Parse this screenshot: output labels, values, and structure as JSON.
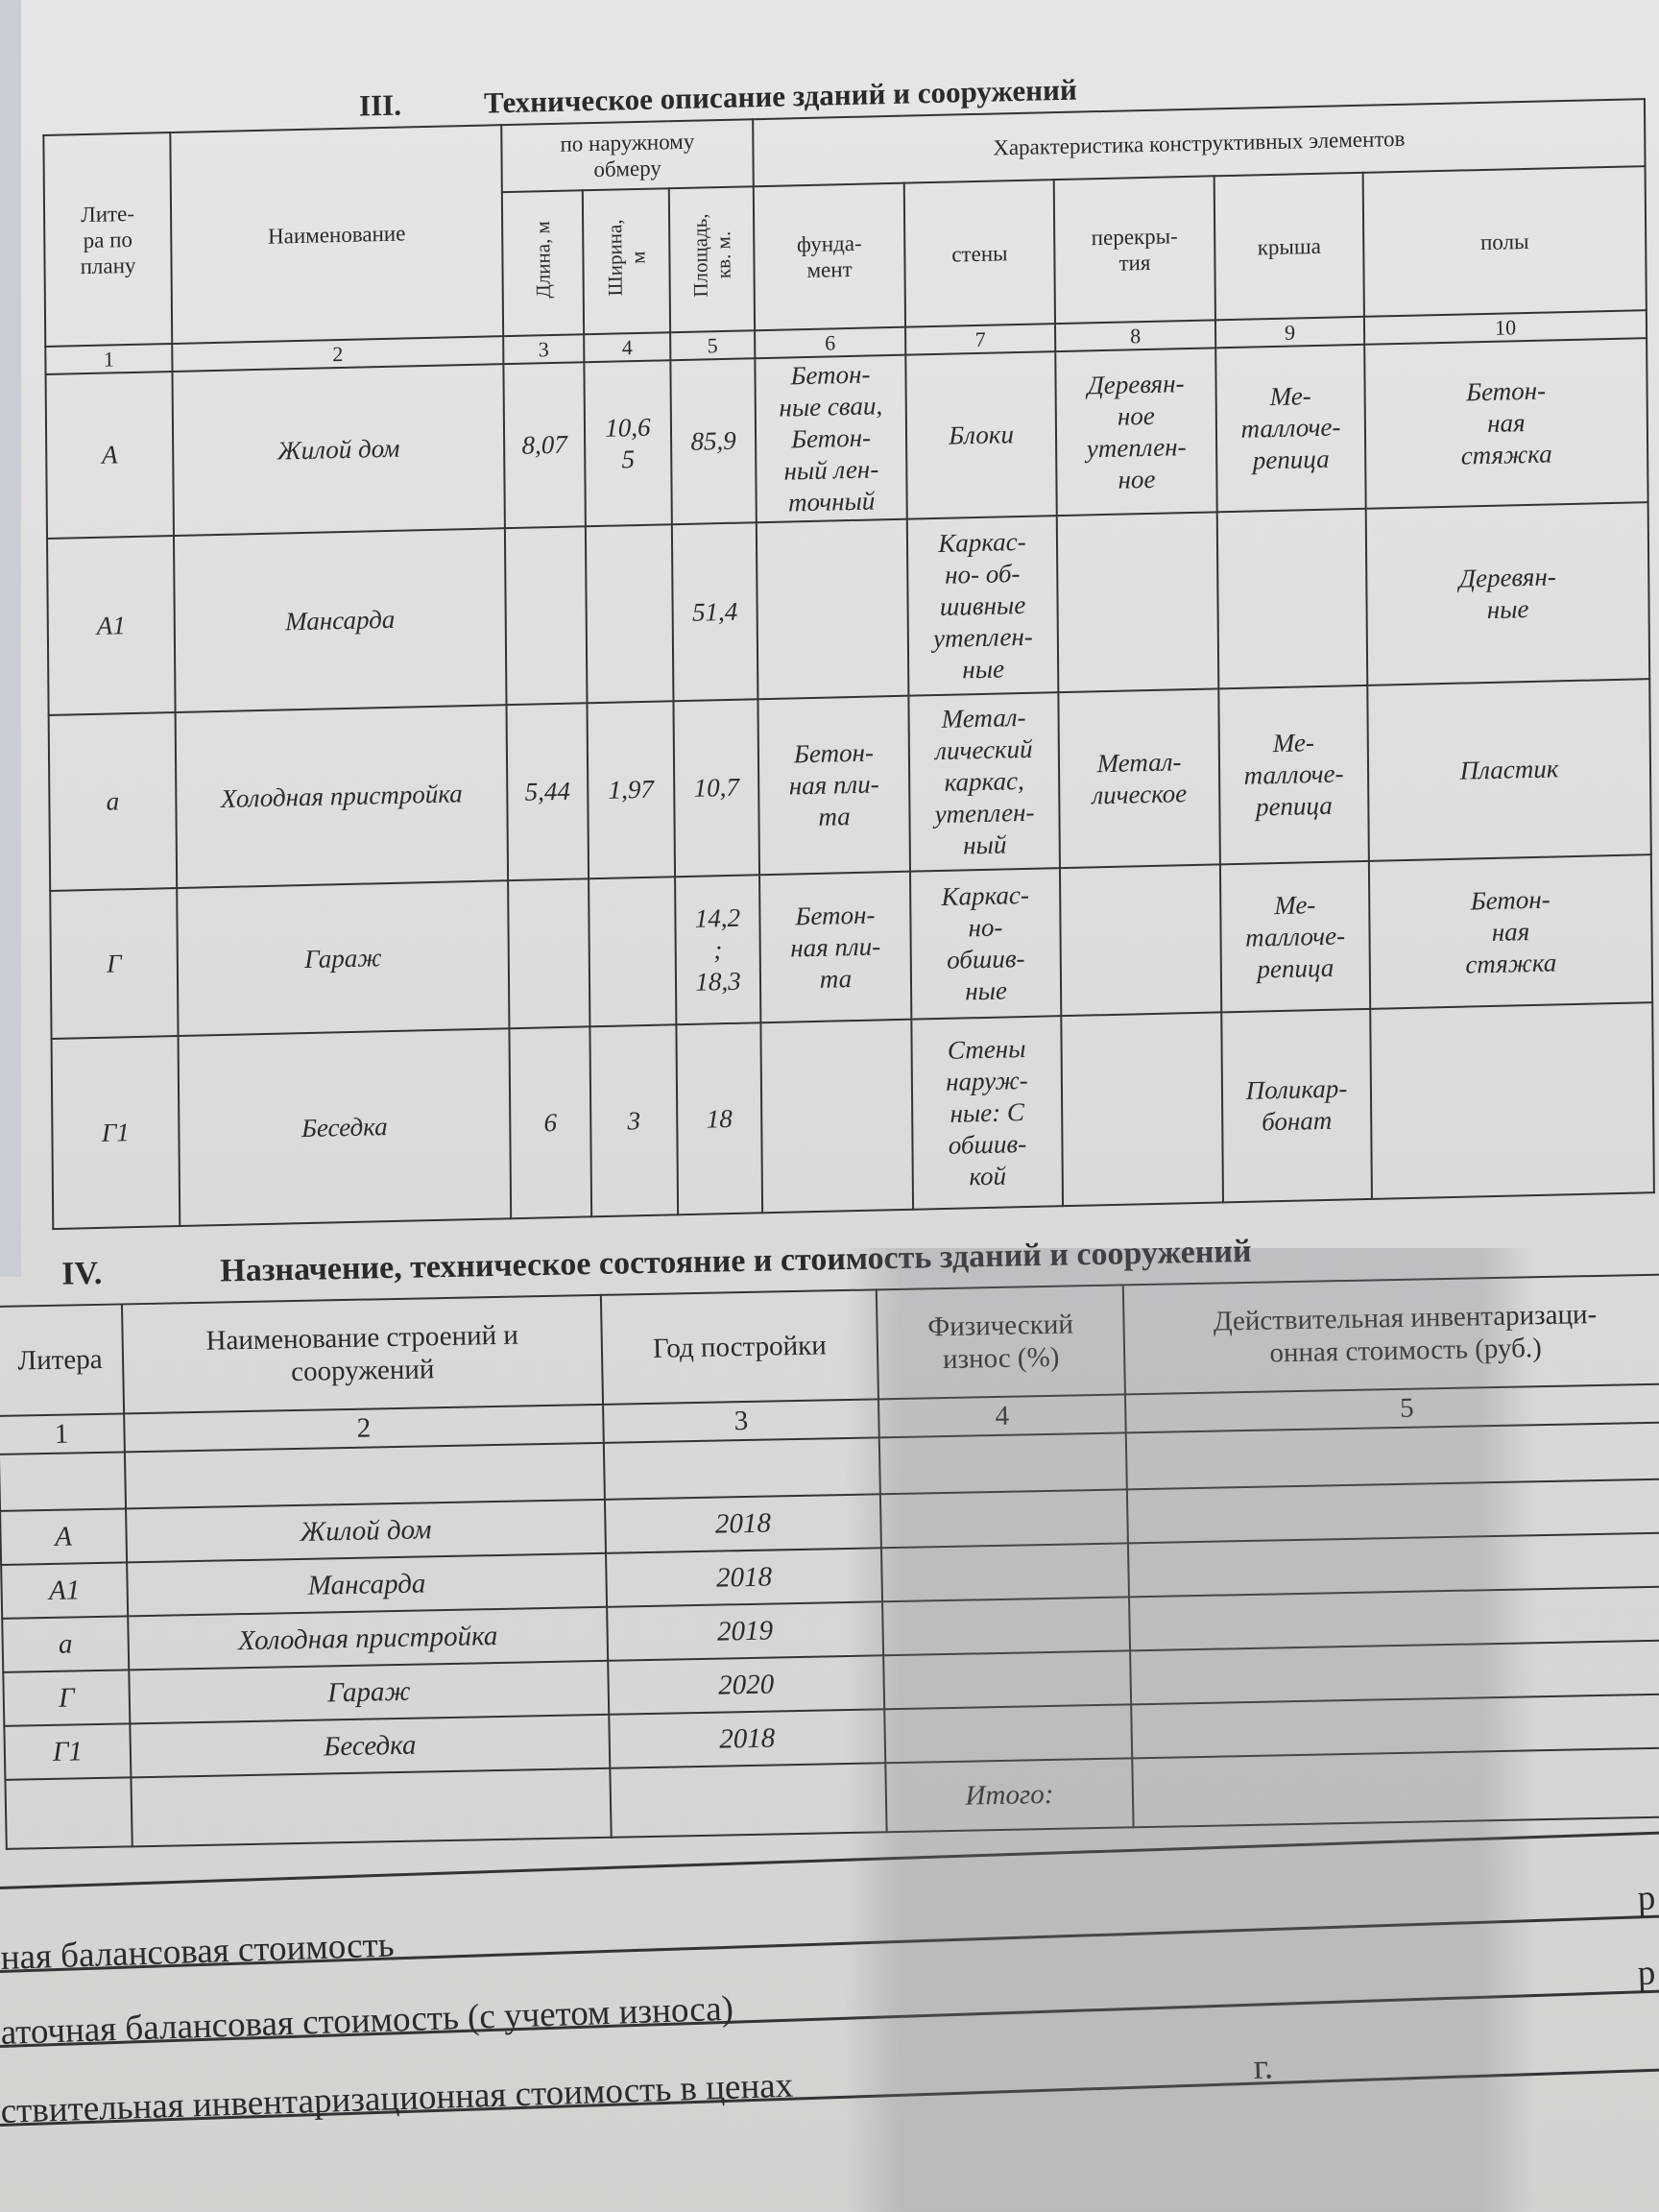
{
  "section3": {
    "number": "III.",
    "title": "Техническое описание зданий   и сооружений",
    "headers": {
      "litera": "Лите-\nра по\nплану",
      "name": "Наименование",
      "outer_group": "по наружному\nобмеру",
      "length": "Длина, м",
      "width": "Ширина,\nм",
      "area": "Площадь,\nкв. м.",
      "elements_group": "Характеристика конструктивных элементов",
      "foundation": "фунда-\nмент",
      "walls": "стены",
      "floors_slab": "перекры-\nтия",
      "roof": "крыша",
      "floor": "полы"
    },
    "column_numbers": [
      "1",
      "2",
      "3",
      "4",
      "5",
      "6",
      "7",
      "8",
      "9",
      "10"
    ],
    "rows": [
      [
        "А",
        "Жилой дом",
        "8,07",
        "10,6\n5",
        "85,9",
        "Бетон-\nные сваи,\nБетон-\nный лен-\nточный",
        "Блоки",
        "Деревян-\nное\nутеплен-\nное",
        "Ме-\nталлоче-\nрепица",
        "Бетон-\nная\nстяжка"
      ],
      [
        "А1",
        "Мансарда",
        "",
        "",
        "51,4",
        "",
        "Каркас-\nно- об-\nшивные\nутеплен-\nные",
        "",
        "",
        "Деревян-\nные"
      ],
      [
        "а",
        "Холодная пристройка",
        "5,44",
        "1,97",
        "10,7",
        "Бетон-\nная пли-\nта",
        "Метал-\nлический\nкаркас,\nутеплен-\nный",
        "Метал-\nлическое",
        "Ме-\nталлоче-\nрепица",
        "Пластик"
      ],
      [
        "Г",
        "Гараж",
        "",
        "",
        "14,2\n;\n18,3",
        "Бетон-\nная пли-\nта",
        "Каркас-\nно-\nобшив-\nные",
        "",
        "Ме-\nталлоче-\nрепица",
        "Бетон-\nная\nстяжка"
      ],
      [
        "Г1",
        "Беседка",
        "6",
        "3",
        "18",
        "",
        "Стены\nнаруж-\nные: С\nобшив-\nкой",
        "",
        "Поликар-\nбонат",
        ""
      ]
    ]
  },
  "section4": {
    "number": "IV.",
    "title": "Назначение, техническое состояние и стоимость зданий и сооружений",
    "headers": [
      "Литера",
      "Наименование строений и\nсооружений",
      "Год постройки",
      "Физический\nизнос (%)",
      "Действительная инвентаризаци-\nонная стоимость (руб.)"
    ],
    "column_numbers": [
      "1",
      "2",
      "3",
      "4",
      "5"
    ],
    "rows": [
      [
        "",
        "",
        "",
        "",
        ""
      ],
      [
        "А",
        "Жилой дом",
        "2018",
        "",
        ""
      ],
      [
        "А1",
        "Мансарда",
        "2018",
        "",
        ""
      ],
      [
        "а",
        "Холодная пристройка",
        "2019",
        "",
        ""
      ],
      [
        "Г",
        "Гараж",
        "2020",
        "",
        ""
      ],
      [
        "Г1",
        "Беседка",
        "2018",
        "",
        ""
      ],
      [
        "",
        "",
        "",
        "Итого:",
        ""
      ]
    ]
  },
  "footer_lines": [
    {
      "text": "ная балансовая стоимость",
      "suffix": "р"
    },
    {
      "text": "аточная балансовая стоимость (с учетом износа)",
      "suffix": "р"
    },
    {
      "text": "ствительная инвентаризационная стоимость в ценах",
      "suffix": "г."
    }
  ]
}
